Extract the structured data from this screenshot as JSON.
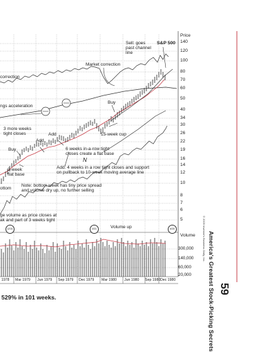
{
  "header": {
    "price_label": "Price",
    "index_label": "S&P 500"
  },
  "price_ticks": [
    "140",
    "120",
    "100",
    "80",
    "70",
    "60",
    "50",
    "40",
    "34",
    "30",
    "26",
    "22",
    "19",
    "16",
    "14",
    "12",
    "10",
    "8",
    "7",
    "6",
    "5"
  ],
  "volume_header": "Volume",
  "volume_ticks": [
    "300,000",
    "140,000",
    "60,000",
    "20,000"
  ],
  "dates": [
    "1978",
    "Mar 1979",
    "Jun 1979",
    "Sep 1979",
    "Dec 1979",
    "Mar 1980",
    "Jun 1980",
    "Sep 1980",
    "Dec 1980"
  ],
  "annotations": {
    "sell": "Sell: goes\npast channel\nline",
    "market_correction": "Market correction",
    "correction": "correction",
    "buy": "Buy",
    "earnings_accel": "ngs acceleration",
    "three_weeks": "3 more weeks\ntight closes",
    "add1": "Add",
    "add2": "Add",
    "buy2": "Buy",
    "fifteen_week": "15-week cup",
    "six_weeks": "6 weeks in-a-row tight\ncloses create a flat base",
    "n_mark": "N",
    "three_week_base": "3-week\nflat base",
    "add_four_weeks": "Add: 4 weeks in a row tight closes and support\non pullback to 10-week moving average line",
    "bottom_note": "Note: bottom week has tiny price spread\nand volume dry up, no further selling",
    "bottom": "ottom",
    "volume_note": "ge volume as price closes at\nak and part of 3 weeks tight",
    "volume_up": "Volume up"
  },
  "markers": [
    "12/31",
    "3/31",
    "6/30"
  ],
  "caption": "529% in 101 weeks.",
  "side_title": "America's Greatest Stock-Picking Secrets",
  "copyright": "© 2009 Investor's Business Daily, Inc.",
  "page_number": "59"
}
